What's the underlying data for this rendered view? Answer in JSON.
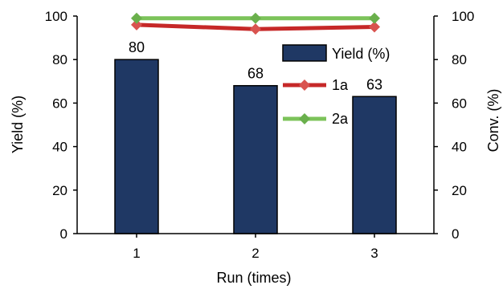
{
  "chart_data": {
    "type": "bar",
    "categories": [
      "1",
      "2",
      "3"
    ],
    "xlabel": "Run (times)",
    "ylabel": "Yield (%)",
    "y2label": "Conv. (%)",
    "ylim": [
      0,
      100
    ],
    "y2lim": [
      0,
      100
    ],
    "yticks": [
      "0",
      "20",
      "40",
      "60",
      "80",
      "100"
    ],
    "y2ticks": [
      "0",
      "20",
      "40",
      "60",
      "80",
      "100"
    ],
    "grid": false,
    "legend_position": "top-right",
    "series": [
      {
        "name": "Yield (%)",
        "type": "bar",
        "axis": "left",
        "values": [
          80,
          68,
          63
        ],
        "color": "#1f3864",
        "data_labels": [
          "80",
          "68",
          "63"
        ]
      },
      {
        "name": "1a",
        "type": "line",
        "axis": "right",
        "values": [
          96,
          94,
          95
        ],
        "color": "#c62828",
        "marker": "diamond",
        "marker_color": "#d9534f"
      },
      {
        "name": "2a",
        "type": "line",
        "axis": "right",
        "values": [
          99,
          99,
          99
        ],
        "color": "#7cc35a",
        "marker": "diamond",
        "marker_color": "#6ab04c"
      }
    ]
  }
}
